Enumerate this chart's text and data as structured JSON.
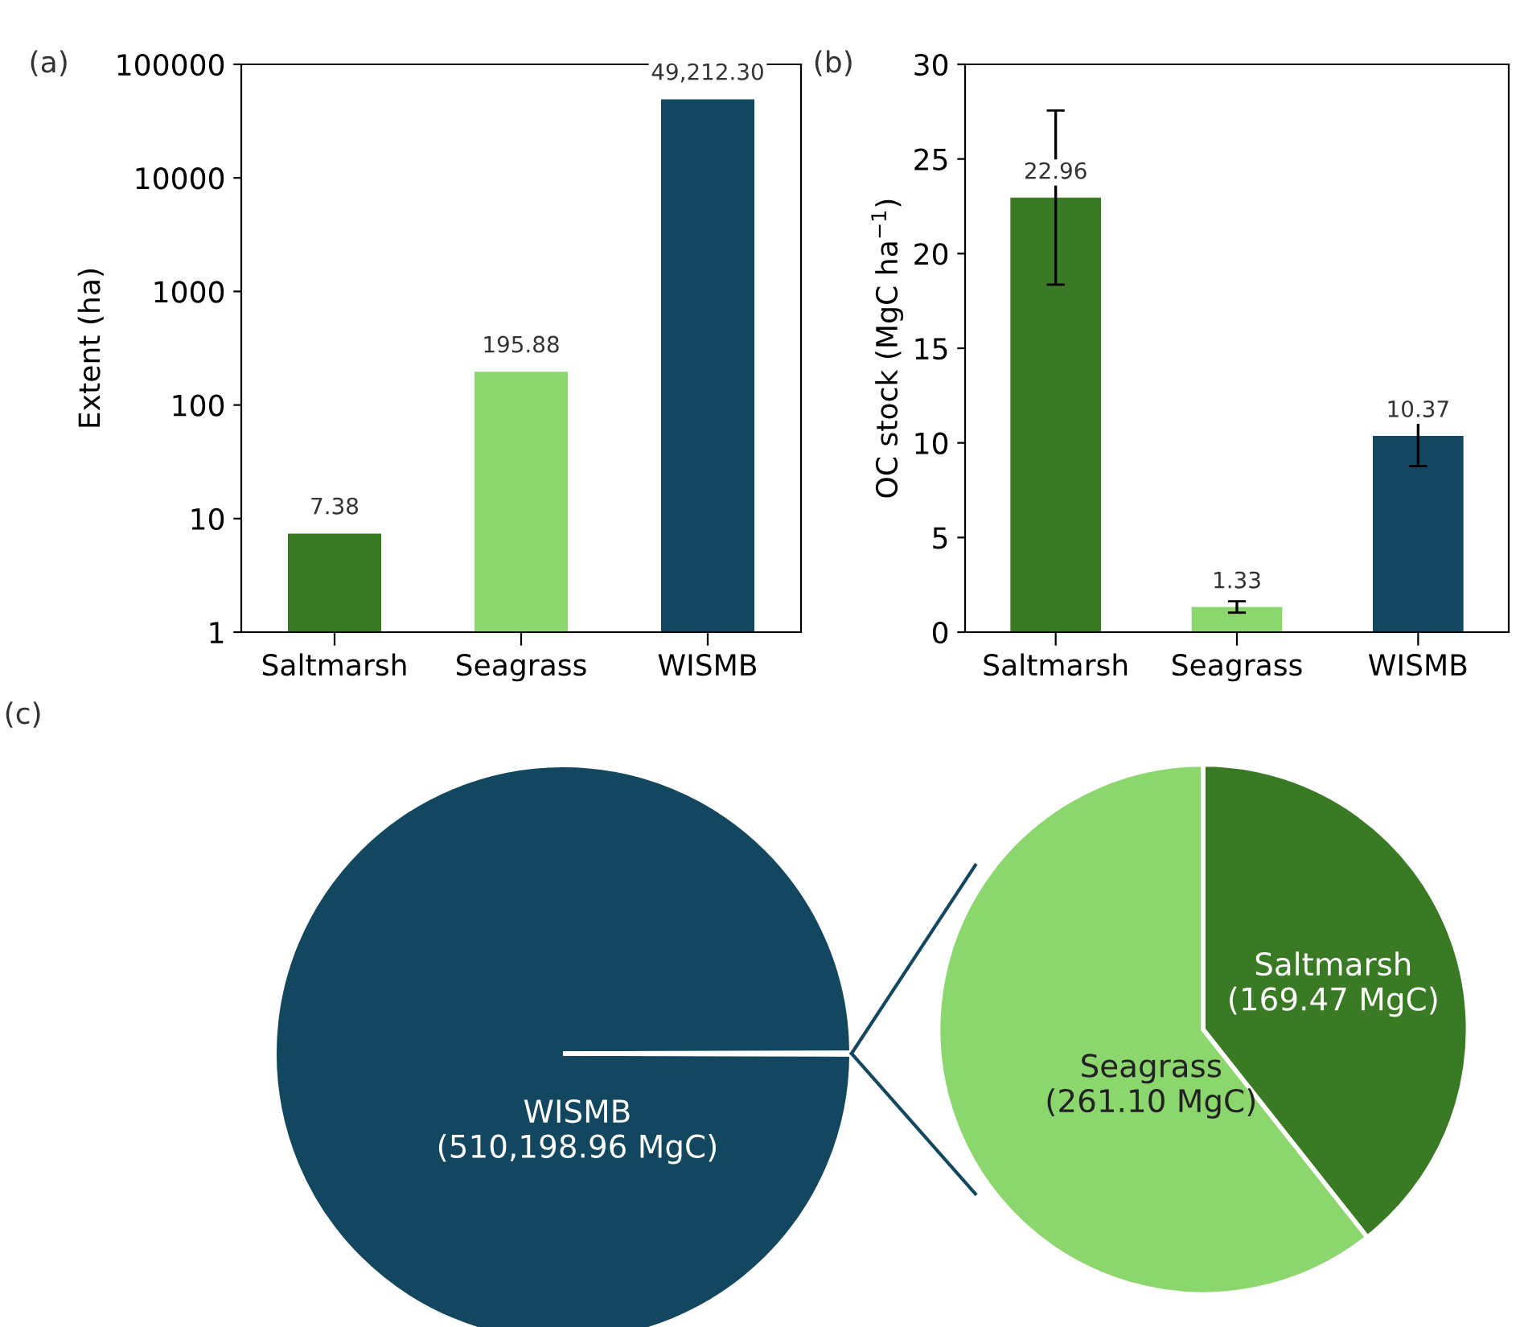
{
  "chart_data": [
    {
      "type": "bar",
      "annotations": [
        "(a)"
      ],
      "ylabel": "Extent (ha)",
      "categories": [
        "Saltmarsh",
        "Seagrass",
        "WISMB"
      ],
      "values": [
        7.38,
        195.88,
        49212.3
      ],
      "colors": [
        "#3a7a24",
        "#8cd66e",
        "#12475f"
      ],
      "value_labels": [
        "7.38",
        "195.88",
        "49,212.30"
      ],
      "log": "y",
      "ylim": [
        1,
        100000
      ],
      "yticks": [
        1,
        10,
        100,
        1000,
        10000,
        100000
      ],
      "grid": false,
      "legend": false
    },
    {
      "type": "bar",
      "annotations": [
        "(b)"
      ],
      "ylabel": "OC stock (MgC ha$^{−1}$)",
      "categories": [
        "Saltmarsh",
        "Seagrass",
        "WISMB"
      ],
      "values": [
        22.96,
        1.33,
        10.37
      ],
      "errors": [
        4.6,
        0.3,
        1.6
      ],
      "colors": [
        "#3a7a24",
        "#8cd66e",
        "#12475f"
      ],
      "value_labels": [
        "22.96",
        "1.33",
        "10.37"
      ],
      "ylim": [
        0,
        30
      ],
      "yticks": [
        0,
        5,
        10,
        15,
        20,
        25,
        30
      ],
      "grid": false,
      "legend": false
    },
    {
      "type": "pie",
      "annotations": [
        "(c)"
      ],
      "categories": [
        "WISMB",
        null
      ],
      "values": [
        510198.96,
        430.57
      ],
      "colors": [
        "#12475f",
        "#12475f"
      ],
      "value_labels": [
        "(510,198.96 MgC)",
        null
      ],
      "legend": false
    },
    {
      "type": "pie",
      "categories": [
        "Saltmarsh",
        "Seagrass"
      ],
      "values": [
        169.47,
        261.1
      ],
      "colors": [
        "#3a7a24",
        "#8cd66e"
      ],
      "value_labels": [
        "(169.47 MgC)",
        "(261.10 MgC)"
      ],
      "legend": false
    }
  ]
}
